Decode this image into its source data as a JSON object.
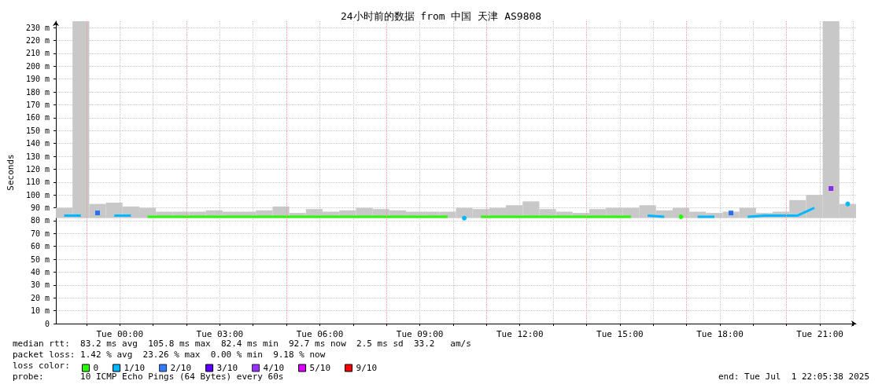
{
  "chart_data": {
    "type": "line",
    "title": "24小时前的数据 from 中国 天津 AS9808",
    "ylabel": "Seconds",
    "legend_title": "loss color:",
    "legend": "bottom left",
    "grid": true,
    "x": [
      "2025-06-30T22:20",
      "2025-06-30T22:50",
      "2025-06-30T23:20",
      "2025-06-30T23:50",
      "2025-07-01T00:20",
      "2025-07-01T00:50",
      "2025-07-01T01:20",
      "2025-07-01T01:50",
      "2025-07-01T02:20",
      "2025-07-01T02:50",
      "2025-07-01T03:20",
      "2025-07-01T03:50",
      "2025-07-01T04:20",
      "2025-07-01T04:50",
      "2025-07-01T05:20",
      "2025-07-01T05:50",
      "2025-07-01T06:20",
      "2025-07-01T06:50",
      "2025-07-01T07:20",
      "2025-07-01T07:50",
      "2025-07-01T08:20",
      "2025-07-01T08:50",
      "2025-07-01T09:20",
      "2025-07-01T09:50",
      "2025-07-01T10:20",
      "2025-07-01T10:50",
      "2025-07-01T11:20",
      "2025-07-01T11:50",
      "2025-07-01T12:20",
      "2025-07-01T12:50",
      "2025-07-01T13:20",
      "2025-07-01T13:50",
      "2025-07-01T14:20",
      "2025-07-01T14:50",
      "2025-07-01T15:20",
      "2025-07-01T15:50",
      "2025-07-01T16:20",
      "2025-07-01T16:50",
      "2025-07-01T17:20",
      "2025-07-01T17:50",
      "2025-07-01T18:20",
      "2025-07-01T18:50",
      "2025-07-01T19:20",
      "2025-07-01T19:50",
      "2025-07-01T20:20",
      "2025-07-01T20:50",
      "2025-07-01T21:20",
      "2025-07-01T21:50"
    ],
    "xlim": [
      "2025-06-30T22:05",
      "2025-07-01T22:05"
    ],
    "xticks": [
      {
        "value": "2025-06-30T23:00",
        "label": null
      },
      {
        "value": "2025-07-01T00:00",
        "label": "Tue 00:00"
      },
      {
        "value": "2025-07-01T01:00",
        "label": null
      },
      {
        "value": "2025-07-01T02:00",
        "label": null
      },
      {
        "value": "2025-07-01T03:00",
        "label": "Tue 03:00"
      },
      {
        "value": "2025-07-01T04:00",
        "label": null
      },
      {
        "value": "2025-07-01T05:00",
        "label": null
      },
      {
        "value": "2025-07-01T06:00",
        "label": "Tue 06:00"
      },
      {
        "value": "2025-07-01T07:00",
        "label": null
      },
      {
        "value": "2025-07-01T08:00",
        "label": null
      },
      {
        "value": "2025-07-01T09:00",
        "label": "Tue 09:00"
      },
      {
        "value": "2025-07-01T10:00",
        "label": null
      },
      {
        "value": "2025-07-01T11:00",
        "label": null
      },
      {
        "value": "2025-07-01T12:00",
        "label": "Tue 12:00"
      },
      {
        "value": "2025-07-01T13:00",
        "label": null
      },
      {
        "value": "2025-07-01T14:00",
        "label": null
      },
      {
        "value": "2025-07-01T15:00",
        "label": "Tue 15:00"
      },
      {
        "value": "2025-07-01T16:00",
        "label": null
      },
      {
        "value": "2025-07-01T17:00",
        "label": null
      },
      {
        "value": "2025-07-01T18:00",
        "label": "Tue 18:00"
      },
      {
        "value": "2025-07-01T19:00",
        "label": null
      },
      {
        "value": "2025-07-01T20:00",
        "label": null
      },
      {
        "value": "2025-07-01T21:00",
        "label": "Tue 21:00"
      },
      {
        "value": "2025-07-01T22:00",
        "label": null
      }
    ],
    "ylim": [
      0,
      235
    ],
    "yticks": [
      0,
      {
        "value": 10,
        "label": "10 m"
      },
      {
        "value": 20,
        "label": "20 m"
      },
      {
        "value": 30,
        "label": "30 m"
      },
      {
        "value": 40,
        "label": "40 m"
      },
      {
        "value": 50,
        "label": "50 m"
      },
      {
        "value": 60,
        "label": "60 m"
      },
      {
        "value": 70,
        "label": "70 m"
      },
      {
        "value": 80,
        "label": "80 m"
      },
      {
        "value": 90,
        "label": "90 m"
      },
      {
        "value": 100,
        "label": "100 m"
      },
      {
        "value": 110,
        "label": "110 m"
      },
      {
        "value": 120,
        "label": "120 m"
      },
      {
        "value": 130,
        "label": "130 m"
      },
      {
        "value": 140,
        "label": "140 m"
      },
      {
        "value": 150,
        "label": "150 m"
      },
      {
        "value": 160,
        "label": "160 m"
      },
      {
        "value": 170,
        "label": "170 m"
      },
      {
        "value": 180,
        "label": "180 m"
      },
      {
        "value": 190,
        "label": "190 m"
      },
      {
        "value": 200,
        "label": "200 m"
      },
      {
        "value": 210,
        "label": "210 m"
      },
      {
        "value": 220,
        "label": "220 m"
      },
      {
        "value": 230,
        "label": "230 m"
      }
    ],
    "ref_lines": [
      {
        "axis": "x",
        "value": "2025-06-30T23:00",
        "color": "#ff9999",
        "line_style": "dotted"
      },
      {
        "axis": "x",
        "value": "2025-07-01T02:00",
        "color": "#ff9999",
        "line_style": "dotted"
      },
      {
        "axis": "x",
        "value": "2025-07-01T05:00",
        "color": "#ff9999",
        "line_style": "dotted"
      },
      {
        "axis": "x",
        "value": "2025-07-01T08:00",
        "color": "#ff9999",
        "line_style": "dotted"
      },
      {
        "axis": "x",
        "value": "2025-07-01T11:00",
        "color": "#ff9999",
        "line_style": "dotted"
      },
      {
        "axis": "x",
        "value": "2025-07-01T14:00",
        "color": "#ff9999",
        "line_style": "dotted"
      },
      {
        "axis": "x",
        "value": "2025-07-01T17:00",
        "color": "#ff9999",
        "line_style": "dotted"
      },
      {
        "axis": "x",
        "value": "2025-07-01T20:00",
        "color": "#ff9999",
        "line_style": "dotted"
      }
    ],
    "series": [
      {
        "type": "bar",
        "color": "#c8c8c8",
        "base": [
          82,
          82,
          82,
          82,
          82,
          82,
          82,
          82,
          82,
          82,
          82,
          82,
          82,
          82,
          82,
          82,
          82,
          82,
          82,
          82,
          82,
          82,
          82,
          82,
          82,
          82,
          82,
          82,
          82,
          82,
          82,
          82,
          82,
          82,
          82,
          82,
          82,
          82,
          82,
          82,
          82,
          82,
          82,
          82,
          82,
          82,
          82,
          82
        ],
        "values": [
          8,
          153,
          11,
          12,
          9,
          8,
          5,
          5,
          5,
          6,
          5,
          5,
          6,
          9,
          4,
          7,
          5,
          6,
          8,
          7,
          6,
          5,
          5,
          5,
          8,
          7,
          8,
          10,
          13,
          7,
          5,
          4,
          7,
          8,
          8,
          10,
          6,
          8,
          5,
          4,
          5,
          8,
          4,
          5,
          14,
          18,
          153,
          11
        ]
      },
      {
        "name": "0",
        "color": "#26ff00",
        "values": [
          null,
          null,
          null,
          null,
          null,
          83,
          83,
          83,
          83,
          83,
          83,
          83,
          83,
          83,
          83,
          83,
          83,
          83,
          83,
          83,
          83,
          83,
          83,
          83,
          null,
          83,
          83,
          83,
          83,
          83,
          83,
          83,
          83,
          83,
          83,
          null,
          null,
          83,
          null,
          null,
          null,
          null,
          null,
          null,
          null,
          null,
          null,
          null
        ]
      },
      {
        "name": "1/10",
        "color": "#00b8ff",
        "values": [
          84,
          84,
          null,
          84,
          84,
          null,
          null,
          null,
          null,
          null,
          null,
          null,
          null,
          null,
          null,
          null,
          null,
          null,
          null,
          null,
          null,
          null,
          null,
          null,
          82,
          null,
          null,
          null,
          null,
          null,
          null,
          null,
          null,
          null,
          null,
          84,
          83,
          null,
          83,
          83,
          null,
          83,
          84,
          84,
          84,
          90,
          null,
          93
        ]
      },
      {
        "type": "scatter",
        "marker": "square",
        "name": "2/10",
        "color": "#0059ff",
        "values": [
          null,
          null,
          86,
          null,
          null,
          null,
          null,
          null,
          null,
          null,
          null,
          null,
          null,
          null,
          null,
          null,
          null,
          null,
          null,
          null,
          null,
          null,
          null,
          null,
          null,
          null,
          null,
          null,
          null,
          null,
          null,
          null,
          null,
          null,
          null,
          null,
          null,
          null,
          null,
          null,
          86,
          null,
          null,
          null,
          null,
          null,
          null,
          null
        ]
      },
      {
        "name": "3/10",
        "color": "#5e00ff",
        "values": [
          null,
          null,
          null,
          null,
          null,
          null,
          null,
          null,
          null,
          null,
          null,
          null,
          null,
          null,
          null,
          null,
          null,
          null,
          null,
          null,
          null,
          null,
          null,
          null,
          null,
          null,
          null,
          null,
          null,
          null,
          null,
          null,
          null,
          null,
          null,
          null,
          null,
          null,
          null,
          null,
          null,
          null,
          null,
          null,
          null,
          null,
          null,
          null
        ]
      },
      {
        "type": "scatter",
        "marker": "square",
        "name": "4/10",
        "color": "#7e00ff",
        "values": [
          null,
          null,
          null,
          null,
          null,
          null,
          null,
          null,
          null,
          null,
          null,
          null,
          null,
          null,
          null,
          null,
          null,
          null,
          null,
          null,
          null,
          null,
          null,
          null,
          null,
          null,
          null,
          null,
          null,
          null,
          null,
          null,
          null,
          null,
          null,
          null,
          null,
          null,
          null,
          null,
          null,
          null,
          null,
          null,
          null,
          null,
          105,
          null
        ]
      },
      {
        "name": "5/10",
        "color": "#dd00ff",
        "values": [
          null,
          null,
          null,
          null,
          null,
          null,
          null,
          null,
          null,
          null,
          null,
          null,
          null,
          null,
          null,
          null,
          null,
          null,
          null,
          null,
          null,
          null,
          null,
          null,
          null,
          null,
          null,
          null,
          null,
          null,
          null,
          null,
          null,
          null,
          null,
          null,
          null,
          null,
          null,
          null,
          null,
          null,
          null,
          null,
          null,
          null,
          null,
          null
        ]
      },
      {
        "name": "9/10",
        "color": "#ff0000",
        "values": [
          null,
          null,
          null,
          null,
          null,
          null,
          null,
          null,
          null,
          null,
          null,
          null,
          null,
          null,
          null,
          null,
          null,
          null,
          null,
          null,
          null,
          null,
          null,
          null,
          null,
          null,
          null,
          null,
          null,
          null,
          null,
          null,
          null,
          null,
          null,
          null,
          null,
          null,
          null,
          null,
          null,
          null,
          null,
          null,
          null,
          null,
          null,
          null
        ]
      }
    ],
    "annotations": [
      "median rtt:  83.2 ms avg  105.8 ms max  82.4 ms min  92.7 ms now  2.5 ms sd  33.2   am/s",
      "packet loss: 1.42 % avg  23.26 % max  0.00 % min  9.18 % now",
      "probe:       10 ICMP Echo Pings (64 Bytes) every 60s",
      "end: Tue Jul  1 22:05:38 2025"
    ]
  }
}
